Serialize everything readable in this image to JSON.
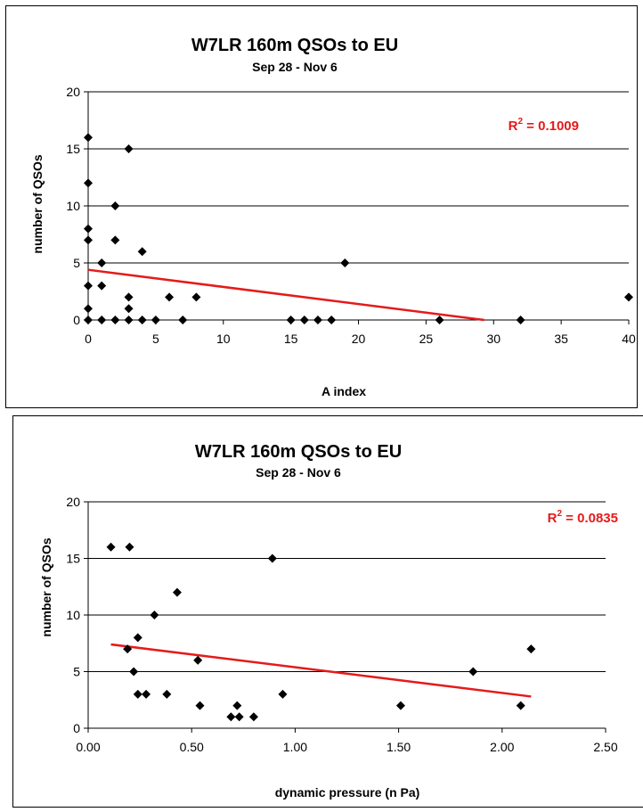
{
  "chart_data": [
    {
      "type": "scatter",
      "title": "W7LR 160m QSOs to EU",
      "subtitle": "Sep 28 - Nov 6",
      "xlabel": "A index",
      "ylabel": "number of QSOs",
      "xlim": [
        0,
        40
      ],
      "ylim": [
        0,
        20
      ],
      "xticks": [
        "0",
        "5",
        "10",
        "15",
        "20",
        "25",
        "30",
        "35",
        "40"
      ],
      "yticks": [
        "0",
        "5",
        "10",
        "15",
        "20"
      ],
      "grid": "horizontal",
      "marker_color": "#000000",
      "trendline": {
        "type": "linear",
        "color": "#e51a1a",
        "x": [
          0,
          29.3
        ],
        "y": [
          4.4,
          0
        ]
      },
      "r_squared": {
        "label": "R",
        "exponent": "2",
        "text": " = 0.1009"
      },
      "points": [
        {
          "x": 0,
          "y": 16
        },
        {
          "x": 0,
          "y": 12
        },
        {
          "x": 0,
          "y": 8
        },
        {
          "x": 0,
          "y": 7
        },
        {
          "x": 0,
          "y": 3
        },
        {
          "x": 0,
          "y": 1
        },
        {
          "x": 0,
          "y": 0
        },
        {
          "x": 1,
          "y": 5
        },
        {
          "x": 1,
          "y": 3
        },
        {
          "x": 1,
          "y": 0
        },
        {
          "x": 2,
          "y": 10
        },
        {
          "x": 2,
          "y": 7
        },
        {
          "x": 2,
          "y": 0
        },
        {
          "x": 3,
          "y": 15
        },
        {
          "x": 3,
          "y": 2
        },
        {
          "x": 3,
          "y": 1
        },
        {
          "x": 3,
          "y": 0
        },
        {
          "x": 4,
          "y": 6
        },
        {
          "x": 4,
          "y": 0
        },
        {
          "x": 5,
          "y": 0
        },
        {
          "x": 6,
          "y": 2
        },
        {
          "x": 7,
          "y": 0
        },
        {
          "x": 8,
          "y": 2
        },
        {
          "x": 15,
          "y": 0
        },
        {
          "x": 16,
          "y": 0
        },
        {
          "x": 17,
          "y": 0
        },
        {
          "x": 18,
          "y": 0
        },
        {
          "x": 19,
          "y": 5
        },
        {
          "x": 26,
          "y": 0
        },
        {
          "x": 32,
          "y": 0
        },
        {
          "x": 40,
          "y": 2
        }
      ]
    },
    {
      "type": "scatter",
      "title": "W7LR 160m QSOs to EU",
      "subtitle": "Sep 28 - Nov 6",
      "xlabel": "dynamic pressure (n Pa)",
      "ylabel": "number of QSOs",
      "xlim": [
        0,
        2.5
      ],
      "ylim": [
        0,
        20
      ],
      "xticks": [
        "0.00",
        "0.50",
        "1.00",
        "1.50",
        "2.00",
        "2.50"
      ],
      "yticks": [
        "0",
        "5",
        "10",
        "15",
        "20"
      ],
      "grid": "horizontal",
      "marker_color": "#000000",
      "trendline": {
        "type": "linear",
        "color": "#e51a1a",
        "x": [
          0.11,
          2.14
        ],
        "y": [
          7.4,
          2.8
        ]
      },
      "r_squared": {
        "label": "R",
        "exponent": "2",
        "text": " = 0.0835"
      },
      "points": [
        {
          "x": 0.11,
          "y": 16
        },
        {
          "x": 0.2,
          "y": 16
        },
        {
          "x": 0.19,
          "y": 7
        },
        {
          "x": 0.22,
          "y": 5
        },
        {
          "x": 0.24,
          "y": 8
        },
        {
          "x": 0.24,
          "y": 3
        },
        {
          "x": 0.28,
          "y": 3
        },
        {
          "x": 0.32,
          "y": 10
        },
        {
          "x": 0.38,
          "y": 3
        },
        {
          "x": 0.43,
          "y": 12
        },
        {
          "x": 0.53,
          "y": 6
        },
        {
          "x": 0.54,
          "y": 2
        },
        {
          "x": 0.69,
          "y": 1
        },
        {
          "x": 0.72,
          "y": 2
        },
        {
          "x": 0.73,
          "y": 1
        },
        {
          "x": 0.8,
          "y": 1
        },
        {
          "x": 0.89,
          "y": 15
        },
        {
          "x": 0.94,
          "y": 3
        },
        {
          "x": 1.51,
          "y": 2
        },
        {
          "x": 1.86,
          "y": 5
        },
        {
          "x": 2.09,
          "y": 2
        },
        {
          "x": 2.14,
          "y": 7
        }
      ]
    }
  ]
}
